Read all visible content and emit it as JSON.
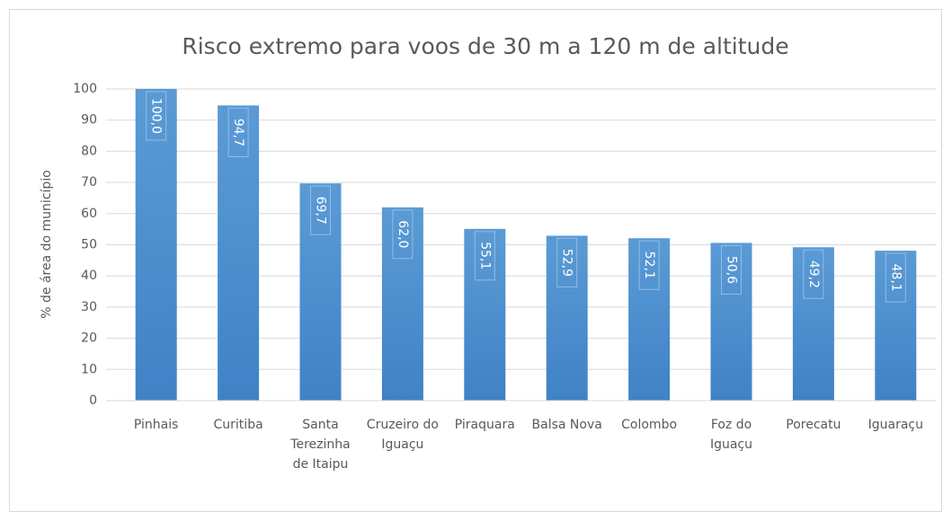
{
  "chart_data": {
    "type": "bar",
    "title": "Risco extremo para voos de 30 m a 120 m de altitude",
    "y_label": "% de área do município",
    "categories": [
      "Pinhais",
      "Curitiba",
      "Santa Terezinha de Itaipu",
      "Cruzeiro do Iguaçu",
      "Piraquara",
      "Balsa Nova",
      "Colombo",
      "Foz do Iguaçu",
      "Porecatu",
      "Iguaraçu"
    ],
    "values": [
      100.0,
      94.7,
      69.7,
      62.0,
      55.1,
      52.9,
      52.1,
      50.6,
      49.2,
      48.1
    ],
    "value_labels": [
      "100,0",
      "94,7",
      "69,7",
      "62,0",
      "55,1",
      "52,9",
      "52,1",
      "50,6",
      "49,2",
      "48,1"
    ],
    "color": "#5b9bd5",
    "ylim": [
      0,
      100
    ],
    "yticks": [
      0,
      10,
      20,
      30,
      40,
      50,
      60,
      70,
      80,
      90,
      100
    ],
    "grid": true
  }
}
